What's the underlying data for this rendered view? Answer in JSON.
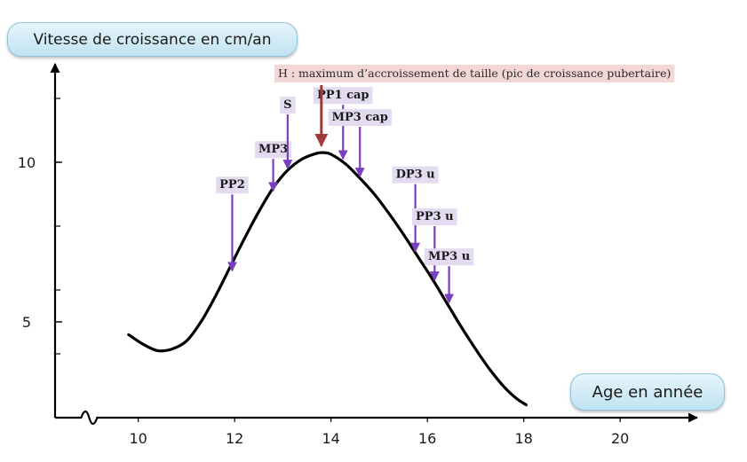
{
  "chart_data": {
    "type": "line",
    "ylabel": "Vitesse de croissance en cm/an",
    "xlabel": "Age en année",
    "x_ticks": [
      "10",
      "12",
      "14",
      "16",
      "18",
      "20"
    ],
    "y_ticks": [
      "5",
      "10"
    ],
    "xlim": [
      8.2,
      21.6
    ],
    "ylim": [
      2.0,
      13.0
    ],
    "series": [
      {
        "points": [
          [
            9.8,
            4.6
          ],
          [
            10.1,
            4.3
          ],
          [
            10.4,
            4.1
          ],
          [
            10.7,
            4.15
          ],
          [
            11.0,
            4.4
          ],
          [
            11.3,
            5.0
          ],
          [
            11.6,
            5.8
          ],
          [
            11.9,
            6.7
          ],
          [
            12.2,
            7.6
          ],
          [
            12.5,
            8.45
          ],
          [
            12.8,
            9.2
          ],
          [
            13.1,
            9.75
          ],
          [
            13.4,
            10.1
          ],
          [
            13.7,
            10.28
          ],
          [
            13.85,
            10.3
          ],
          [
            14.0,
            10.25
          ],
          [
            14.3,
            9.95
          ],
          [
            14.6,
            9.5
          ],
          [
            14.9,
            9.0
          ],
          [
            15.2,
            8.4
          ],
          [
            15.5,
            7.75
          ],
          [
            15.8,
            7.05
          ],
          [
            16.1,
            6.35
          ],
          [
            16.4,
            5.6
          ],
          [
            16.7,
            4.85
          ],
          [
            17.0,
            4.15
          ],
          [
            17.3,
            3.5
          ],
          [
            17.6,
            2.95
          ],
          [
            17.85,
            2.6
          ],
          [
            18.05,
            2.4
          ]
        ]
      }
    ],
    "markers": [
      {
        "label": "PP2",
        "x": 11.95,
        "y": 6.55
      },
      {
        "label": "MP3",
        "x": 12.8,
        "y": 9.05
      },
      {
        "label": "S",
        "x": 13.1,
        "y": 9.75
      },
      {
        "label": "PP1 cap",
        "x": 14.25,
        "y": 10.05
      },
      {
        "label": "MP3 cap",
        "x": 14.6,
        "y": 9.5
      },
      {
        "label": "DP3 u",
        "x": 15.75,
        "y": 7.15
      },
      {
        "label": "PP3 u",
        "x": 16.15,
        "y": 6.25
      },
      {
        "label": "MP3 u",
        "x": 16.45,
        "y": 5.55
      }
    ],
    "peak": {
      "label": "H : maximum d’accroissement de taille (pic de croissance pubertaire)",
      "x": 13.8,
      "y": 10.35
    },
    "colors": {
      "curve": "#000000",
      "marker_arrow": "#7a3ec1",
      "marker_label_bg": "#e3dcf0",
      "peak_arrow": "#9e3a3a",
      "peak_label_bg": "#f3d6d6",
      "axis": "#000000"
    }
  }
}
